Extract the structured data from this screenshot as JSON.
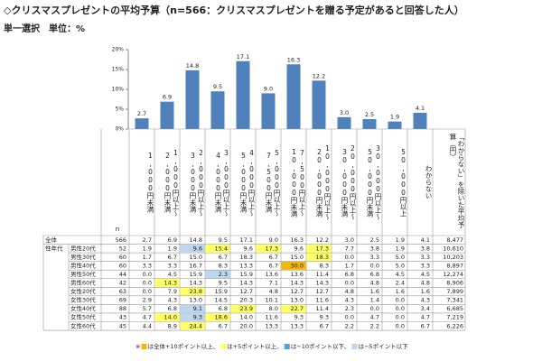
{
  "chart_data": {
    "type": "bar",
    "title": "◇クリスマスプレゼントの平均予算（n=566：クリスマスプレゼントを贈る予定があると回答した人）",
    "subtitle": "単一選択　単位：%",
    "categories": [
      "1,000円未満",
      "1,000円以上～2,000円未満",
      "2,000円以上～3,000円未満",
      "3,000円以上～4,000円未満",
      "4,000円以上～5,000円未満",
      "5,000円以上～7,500円未満",
      "7,500円以上～10,000円未満",
      "10,000円以上～20,000円未満",
      "20,000円以上～30,000円未満",
      "30,000円以上～50,000円未満",
      "50,000円以上",
      "わからない"
    ],
    "values": [
      2.7,
      6.9,
      14.8,
      9.5,
      17.1,
      9.0,
      16.3,
      12.2,
      3.0,
      2.5,
      1.9,
      4.1
    ],
    "value_labels": [
      "2.7",
      "6.9",
      "14.8",
      "9.5",
      "17.1",
      "9.0",
      "16.3",
      "12.2",
      "3.0",
      "2.5",
      "1.9",
      "4.1"
    ],
    "color": "#4f81bd",
    "ylim": [
      0,
      20
    ],
    "yticks": [
      {
        "value": 0,
        "label": "0%"
      },
      {
        "value": 5,
        "label": "5%"
      },
      {
        "value": 10,
        "label": "10%"
      },
      {
        "value": 15,
        "label": "15%"
      },
      {
        "value": 20,
        "label": "20%"
      }
    ]
  },
  "table": {
    "n_header": "n",
    "average_header": "「わからない」を除いた平均予算（円）",
    "total_label": "全体",
    "total_n": 566,
    "total_average": "8,477",
    "group_label": "性年代",
    "rows": [
      {
        "label": "男性20代",
        "n": 52,
        "values": [
          "1.9",
          "1.9",
          "9.6",
          "15.4",
          "9.6",
          "17.3",
          "9.6",
          "17.3",
          "7.7",
          "3.8",
          "1.9",
          "3.8"
        ],
        "average": "10,610"
      },
      {
        "label": "男性30代",
        "n": 60,
        "values": [
          "1.7",
          "6.7",
          "15.0",
          "6.7",
          "18.3",
          "6.7",
          "15.0",
          "18.3",
          "0.0",
          "3.3",
          "5.0",
          "3.3"
        ],
        "average": "10,203"
      },
      {
        "label": "男性40代",
        "n": 60,
        "values": [
          "3.3",
          "3.3",
          "16.7",
          "8.3",
          "13.3",
          "6.7",
          "30.0",
          "8.3",
          "1.7",
          "0.0",
          "5.0",
          "3.3"
        ],
        "average": "8,897"
      },
      {
        "label": "男性50代",
        "n": 44,
        "values": [
          "0.0",
          "4.5",
          "15.9",
          "2.3",
          "15.9",
          "13.6",
          "13.6",
          "11.4",
          "6.8",
          "6.8",
          "4.5",
          "4.5"
        ],
        "average": "12,274"
      },
      {
        "label": "男性60代",
        "n": 42,
        "values": [
          "0.0",
          "14.3",
          "14.3",
          "9.5",
          "14.3",
          "7.1",
          "14.3",
          "14.3",
          "0.0",
          "4.8",
          "2.4",
          "4.8"
        ],
        "average": "8,906"
      },
      {
        "label": "女性20代",
        "n": 63,
        "values": [
          "0.0",
          "7.9",
          "23.8",
          "15.9",
          "12.7",
          "4.8",
          "12.7",
          "12.7",
          "4.8",
          "1.6",
          "1.6",
          "1.6"
        ],
        "average": "7,899"
      },
      {
        "label": "女性30代",
        "n": 69,
        "values": [
          "2.9",
          "4.3",
          "13.0",
          "14.5",
          "20.3",
          "10.1",
          "13.0",
          "11.6",
          "4.3",
          "1.4",
          "0.0",
          "4.3"
        ],
        "average": "7,341"
      },
      {
        "label": "女性40代",
        "n": 88,
        "values": [
          "5.7",
          "6.8",
          "9.1",
          "6.8",
          "23.9",
          "8.0",
          "22.7",
          "11.4",
          "2.3",
          "0.0",
          "0.0",
          "3.4"
        ],
        "average": "6,685"
      },
      {
        "label": "女性50代",
        "n": 43,
        "values": [
          "4.7",
          "14.0",
          "9.3",
          "18.6",
          "14.0",
          "11.6",
          "9.3",
          "9.3",
          "0.0",
          "4.7",
          "0.0",
          "4.7"
        ],
        "average": "7,219"
      },
      {
        "label": "女性60代",
        "n": 45,
        "values": [
          "4.4",
          "8.9",
          "24.4",
          "6.7",
          "20.0",
          "13.3",
          "13.3",
          "6.7",
          "2.2",
          "2.2",
          "0.0",
          "6.7"
        ],
        "average": "6,226"
      }
    ],
    "highlights": [
      {
        "row": 0,
        "col": 2,
        "level": 3
      },
      {
        "row": 0,
        "col": 3,
        "level": 1
      },
      {
        "row": 0,
        "col": 5,
        "level": 1
      },
      {
        "row": 0,
        "col": 7,
        "level": 1
      },
      {
        "row": 1,
        "col": 7,
        "level": 1
      },
      {
        "row": 2,
        "col": 6,
        "level": 0
      },
      {
        "row": 3,
        "col": 3,
        "level": 3
      },
      {
        "row": 4,
        "col": 1,
        "level": 1
      },
      {
        "row": 5,
        "col": 2,
        "level": 1
      },
      {
        "row": 7,
        "col": 2,
        "level": 3
      },
      {
        "row": 7,
        "col": 4,
        "level": 1
      },
      {
        "row": 7,
        "col": 6,
        "level": 1
      },
      {
        "row": 8,
        "col": 1,
        "level": 1
      },
      {
        "row": 8,
        "col": 2,
        "level": 3
      },
      {
        "row": 8,
        "col": 3,
        "level": 1
      },
      {
        "row": 9,
        "col": 2,
        "level": 1
      }
    ],
    "legend_prefix": "※",
    "legend": [
      {
        "color": "#f5b800",
        "label": "は全体+10ポイント以上、"
      },
      {
        "color": "#ffff66",
        "label": "は+5ポイント以上、"
      },
      {
        "color": "#4f9fd8",
        "label": "は−10ポイント以下、"
      },
      {
        "color": "#bdd7ee",
        "label": "は−5ポイント以下"
      }
    ]
  }
}
